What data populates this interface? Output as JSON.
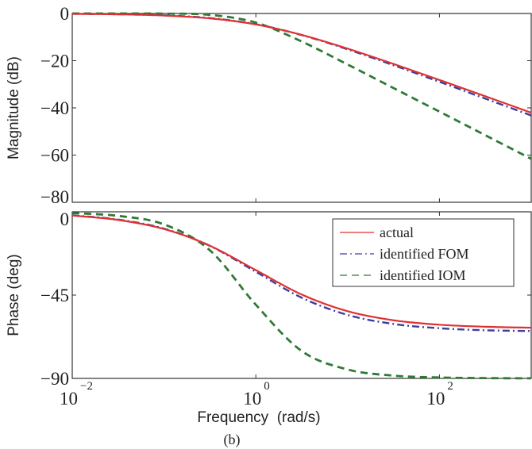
{
  "chart_data": [
    {
      "type": "line",
      "panel": "magnitude",
      "ylabel": "Magnitude (dB)",
      "xscale": "log",
      "xlim": [
        0.01,
        1000
      ],
      "ylim": [
        -80,
        0
      ],
      "yticks": [
        "0",
        "−20",
        "−40",
        "−60",
        "−80"
      ],
      "ytick_values": [
        0,
        -20,
        -40,
        -60,
        -80
      ],
      "grid": false,
      "x": [
        0.01,
        0.0316,
        0.1,
        0.316,
        1,
        3.16,
        10,
        31.6,
        100,
        316,
        1000
      ],
      "series": [
        {
          "name": "actual",
          "color": "#e03131",
          "style": "solid",
          "values": [
            -0.16,
            -0.37,
            -0.87,
            -2.06,
            -4.64,
            -9.06,
            -14.87,
            -21.37,
            -28.16,
            -35.07,
            -42.03
          ]
        },
        {
          "name": "identified FOM",
          "color": "#3b3f9e",
          "style": "dashdot",
          "values": [
            -0.14,
            -0.32,
            -0.79,
            -1.94,
            -4.55,
            -9.14,
            -15.19,
            -21.92,
            -28.94,
            -36.06,
            -43.22
          ]
        },
        {
          "name": "identified IOM",
          "color": "#2f7a35",
          "style": "dashed",
          "values": [
            0.0,
            -0.01,
            -0.06,
            -0.58,
            -3.87,
            -11.87,
            -21.61,
            -31.59,
            -41.58,
            -51.58,
            -61.58
          ]
        }
      ]
    },
    {
      "type": "line",
      "panel": "phase",
      "xlabel": "Frequency  (rad/s)",
      "ylabel": "Phase (deg)",
      "xscale": "log",
      "xlim": [
        0.01,
        1000
      ],
      "ylim": [
        -90,
        0
      ],
      "xticks": [
        {
          "base": "10",
          "exp": "−2"
        },
        {
          "base": "10",
          "exp": "0"
        },
        {
          "base": "10",
          "exp": "2"
        }
      ],
      "xtick_values": [
        0.01,
        1,
        100
      ],
      "yticks": [
        "0",
        "−45",
        "−90"
      ],
      "ytick_values": [
        0,
        -45,
        -90
      ],
      "grid": false,
      "legend": "top-right",
      "x": [
        0.01,
        0.0316,
        0.1,
        0.316,
        1,
        3.16,
        10,
        31.6,
        100,
        316,
        1000
      ],
      "series": [
        {
          "name": "actual",
          "color": "#e03131",
          "style": "solid",
          "values": [
            -2.0,
            -4.4,
            -9.3,
            -18.3,
            -31.5,
            -44.7,
            -53.7,
            -58.6,
            -61.0,
            -62.1,
            -62.6
          ]
        },
        {
          "name": "identified FOM",
          "color": "#3b3f9e",
          "style": "dashdot",
          "values": [
            -1.9,
            -4.2,
            -9.1,
            -18.4,
            -32.4,
            -46.4,
            -55.7,
            -60.6,
            -62.9,
            -64.0,
            -64.4
          ]
        },
        {
          "name": "identified IOM",
          "color": "#2f7a35",
          "style": "dashed",
          "values": [
            -0.7,
            -2.2,
            -6.8,
            -20.8,
            -50.2,
            -75.2,
            -85.2,
            -88.5,
            -89.5,
            -89.85,
            -89.95
          ]
        }
      ]
    }
  ],
  "caption": "(b)"
}
